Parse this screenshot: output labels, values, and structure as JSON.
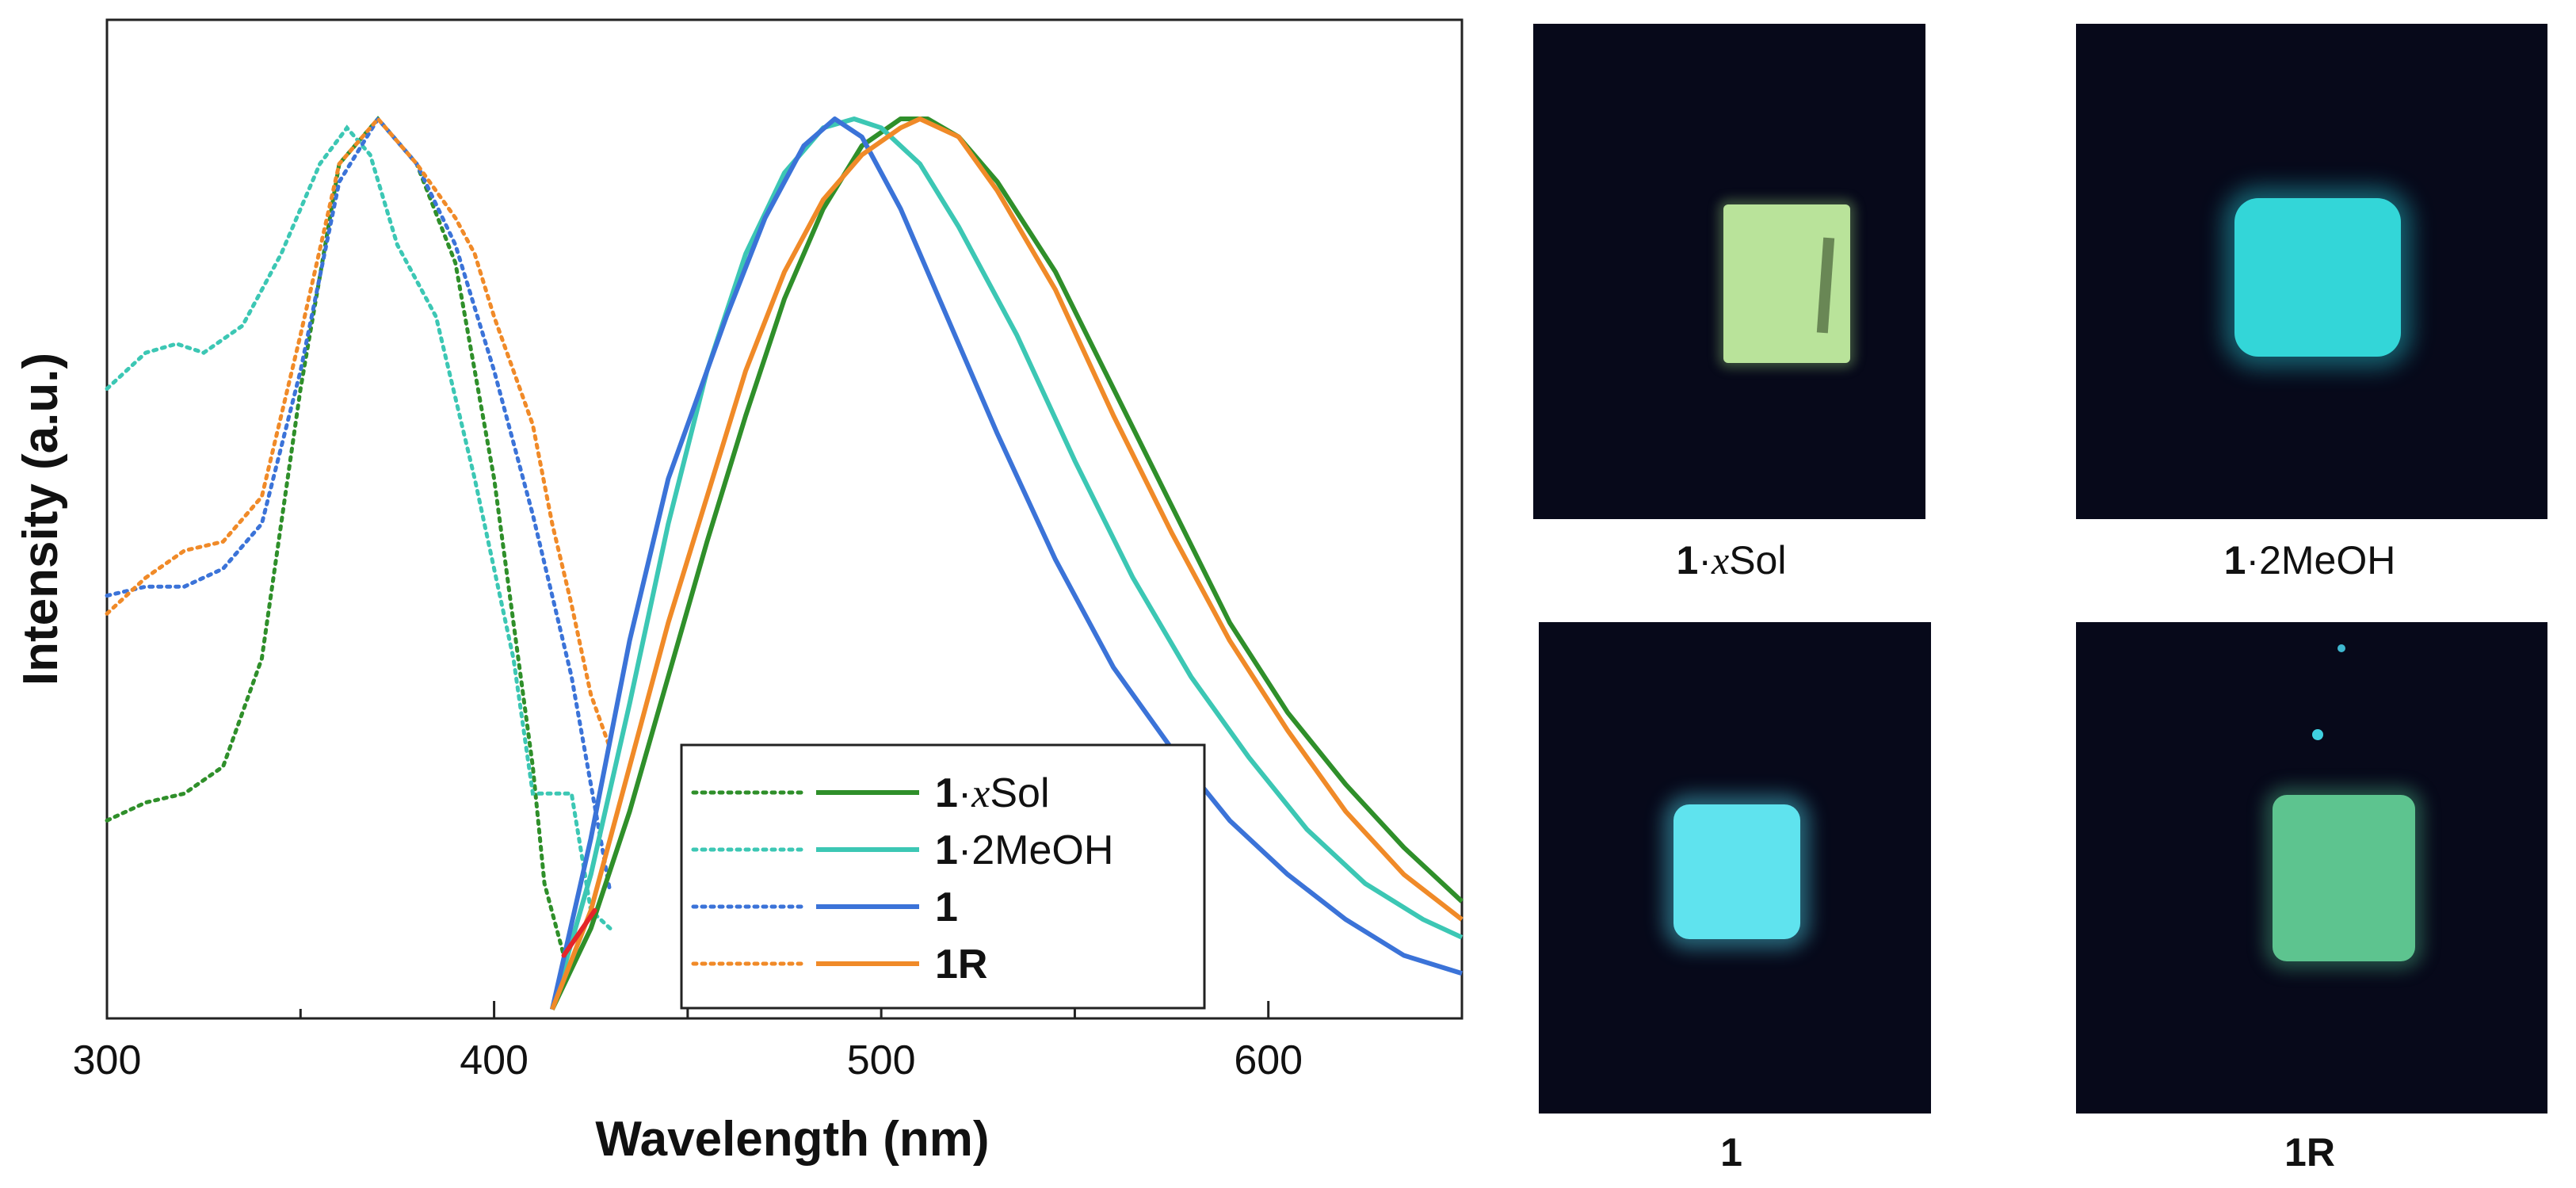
{
  "chart_data": {
    "type": "line",
    "xlabel": "Wavelength (nm)",
    "ylabel": "Intensity (a.u.)",
    "xlim": [
      300,
      650
    ],
    "ylim": [
      0,
      1.0
    ],
    "xticks": [
      300,
      400,
      500,
      600
    ],
    "x_tick_labels": [
      "300",
      "400",
      "500",
      "600"
    ],
    "grid": false,
    "legend_position": "bottom-center",
    "excitation_series": [
      {
        "name": "1·xSol",
        "color": "#2f8f2a",
        "style": "dotted",
        "x": [
          300,
          310,
          320,
          330,
          340,
          350,
          360,
          370,
          380,
          390,
          400,
          410,
          413,
          418
        ],
        "y": [
          0.22,
          0.24,
          0.25,
          0.28,
          0.4,
          0.7,
          0.95,
          1.0,
          0.95,
          0.84,
          0.6,
          0.28,
          0.15,
          0.07
        ]
      },
      {
        "name": "1·2MeOH",
        "color": "#3cc7b4",
        "style": "dotted",
        "x": [
          300,
          310,
          318,
          325,
          335,
          345,
          355,
          362,
          368,
          375,
          385,
          395,
          405,
          410,
          420,
          425,
          430
        ],
        "y": [
          0.7,
          0.74,
          0.75,
          0.74,
          0.77,
          0.85,
          0.95,
          0.99,
          0.96,
          0.86,
          0.78,
          0.6,
          0.4,
          0.25,
          0.25,
          0.12,
          0.1
        ]
      },
      {
        "name": "1",
        "color": "#3b73d8",
        "style": "dotted",
        "x": [
          300,
          310,
          320,
          330,
          340,
          350,
          360,
          370,
          380,
          390,
          400,
          410,
          415,
          420,
          425,
          430
        ],
        "y": [
          0.47,
          0.48,
          0.48,
          0.5,
          0.55,
          0.72,
          0.93,
          1.0,
          0.95,
          0.86,
          0.72,
          0.56,
          0.47,
          0.38,
          0.26,
          0.14
        ]
      },
      {
        "name": "1R",
        "color": "#f08a28",
        "style": "dotted",
        "x": [
          300,
          310,
          320,
          330,
          340,
          350,
          360,
          370,
          380,
          390,
          395,
          400,
          410,
          415,
          420,
          425,
          430
        ],
        "y": [
          0.45,
          0.49,
          0.52,
          0.53,
          0.58,
          0.76,
          0.95,
          1.0,
          0.95,
          0.89,
          0.85,
          0.78,
          0.66,
          0.55,
          0.46,
          0.36,
          0.3
        ]
      }
    ],
    "emission_series": [
      {
        "name": "1·xSol",
        "color": "#2f8f2a",
        "style": "solid",
        "x": [
          415,
          425,
          435,
          445,
          455,
          465,
          475,
          485,
          495,
          505,
          512,
          520,
          530,
          545,
          560,
          575,
          590,
          605,
          620,
          635,
          650
        ],
        "y": [
          0.01,
          0.1,
          0.23,
          0.38,
          0.53,
          0.67,
          0.8,
          0.9,
          0.97,
          1.0,
          1.0,
          0.98,
          0.93,
          0.83,
          0.7,
          0.57,
          0.44,
          0.34,
          0.26,
          0.19,
          0.13
        ]
      },
      {
        "name": "1·2MeOH",
        "color": "#3cc7b4",
        "style": "solid",
        "x": [
          415,
          425,
          435,
          445,
          455,
          465,
          475,
          485,
          493,
          500,
          510,
          520,
          535,
          550,
          565,
          580,
          595,
          610,
          625,
          640,
          650
        ],
        "y": [
          0.01,
          0.16,
          0.35,
          0.55,
          0.72,
          0.85,
          0.94,
          0.99,
          1.0,
          0.99,
          0.95,
          0.88,
          0.76,
          0.62,
          0.49,
          0.38,
          0.29,
          0.21,
          0.15,
          0.11,
          0.09
        ]
      },
      {
        "name": "1",
        "color": "#3b73d8",
        "style": "solid",
        "x": [
          415,
          425,
          435,
          445,
          450,
          460,
          470,
          480,
          488,
          495,
          505,
          515,
          530,
          545,
          560,
          575,
          590,
          605,
          620,
          635,
          650
        ],
        "y": [
          0.01,
          0.2,
          0.42,
          0.6,
          0.66,
          0.78,
          0.89,
          0.97,
          1.0,
          0.98,
          0.9,
          0.8,
          0.65,
          0.51,
          0.39,
          0.3,
          0.22,
          0.16,
          0.11,
          0.07,
          0.05
        ]
      },
      {
        "name": "1R",
        "color": "#f08a28",
        "style": "solid",
        "x": [
          415,
          425,
          435,
          445,
          455,
          465,
          475,
          485,
          495,
          505,
          510,
          520,
          530,
          545,
          560,
          575,
          590,
          605,
          620,
          635,
          650
        ],
        "y": [
          0.01,
          0.12,
          0.28,
          0.44,
          0.58,
          0.72,
          0.83,
          0.91,
          0.96,
          0.99,
          1.0,
          0.98,
          0.92,
          0.81,
          0.67,
          0.54,
          0.42,
          0.32,
          0.23,
          0.16,
          0.11
        ]
      }
    ],
    "red_segment": {
      "color": "#e5252a",
      "x": [
        418,
        426
      ],
      "y": [
        0.07,
        0.12
      ]
    },
    "legend_entries": [
      {
        "bold": "1",
        "mid": "·",
        "italic": "x",
        "rest": "Sol",
        "color": "#2f8f2a"
      },
      {
        "bold": "1",
        "mid": "·",
        "italic": "",
        "rest": "2MeOH",
        "color": "#3cc7b4"
      },
      {
        "bold": "1",
        "mid": "",
        "italic": "",
        "rest": "",
        "color": "#3b73d8"
      },
      {
        "bold": "1R",
        "mid": "",
        "italic": "",
        "rest": "",
        "color": "#f08a28"
      }
    ]
  },
  "photos": [
    {
      "id": "xsol",
      "label_bold": "1",
      "label_dot": "·",
      "label_italic": "x",
      "label_rest": "Sol",
      "sample_color": "#b9e39a"
    },
    {
      "id": "meoh",
      "label_bold": "1",
      "label_dot": "·",
      "label_italic": "",
      "label_rest": "2MeOH",
      "sample_color": "#33d6d8"
    },
    {
      "id": "one",
      "label_bold": "1",
      "label_dot": "",
      "label_italic": "",
      "label_rest": "",
      "sample_color": "#5fe3ee"
    },
    {
      "id": "oneR",
      "label_bold": "1R",
      "label_dot": "",
      "label_italic": "",
      "label_rest": "",
      "sample_color": "#5dc48f"
    }
  ]
}
